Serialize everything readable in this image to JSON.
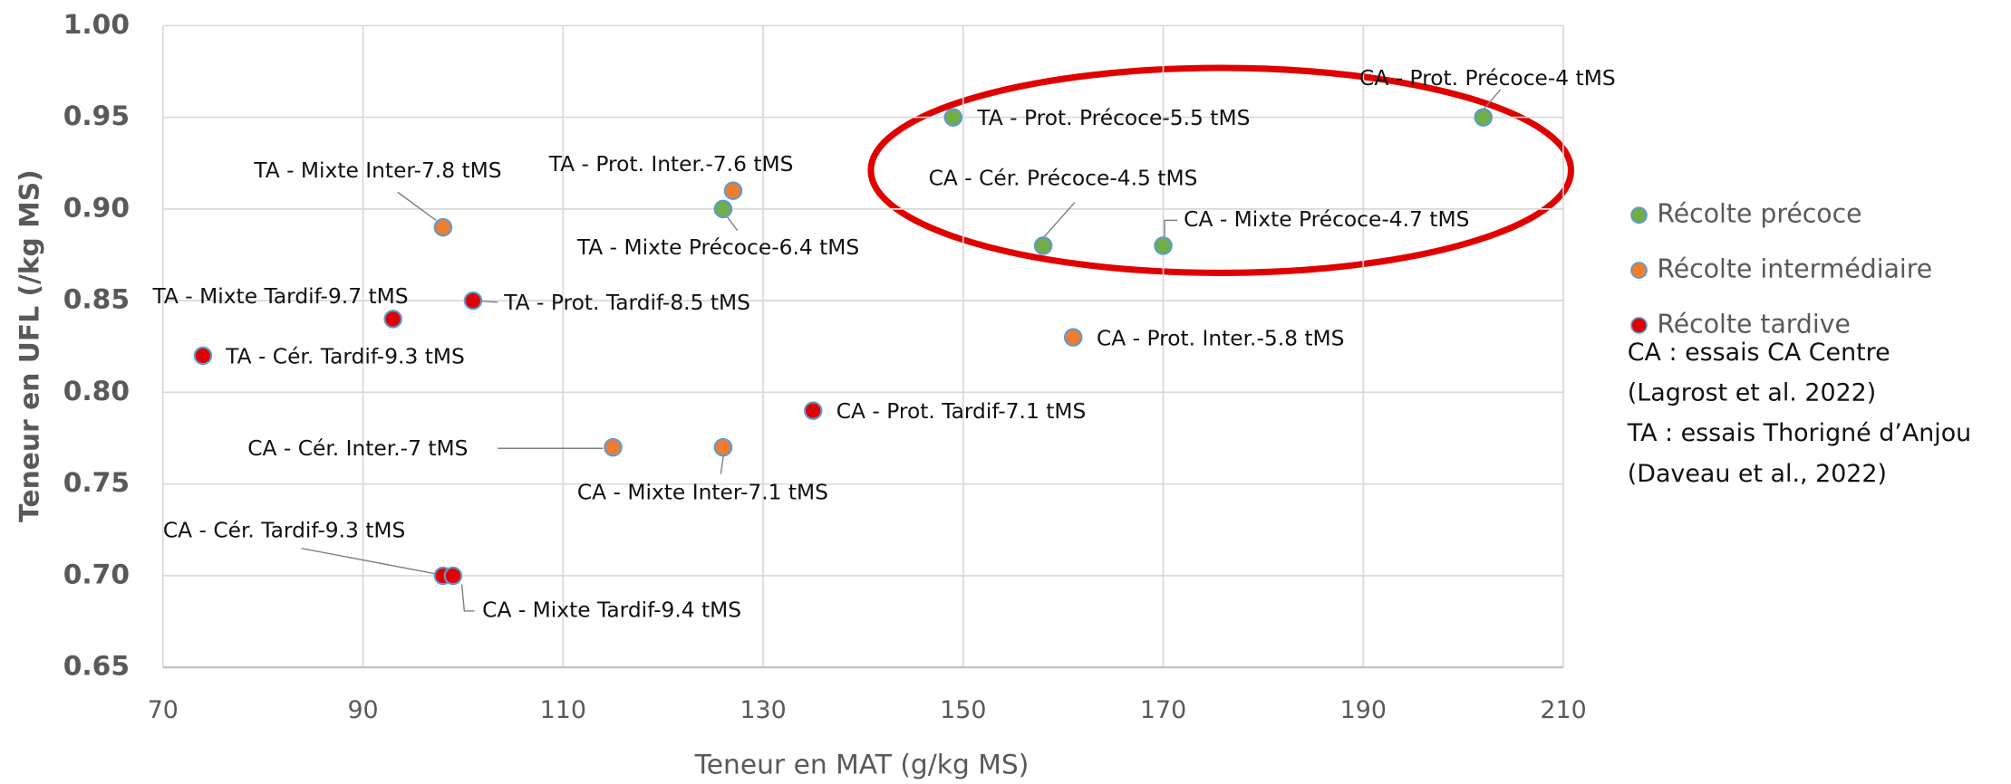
{
  "chart_data": {
    "type": "scatter",
    "xlabel": "Teneur en MAT (g/kg MS)",
    "ylabel": "Teneur en UFL (/kg MS)",
    "xlim": [
      70,
      210
    ],
    "xticks": [
      70,
      90,
      110,
      130,
      150,
      170,
      190,
      210
    ],
    "ylim": [
      0.65,
      1.0
    ],
    "yticks": [
      {
        "value": 0.65,
        "label": "0.65"
      },
      {
        "value": 0.7,
        "label": "0.70"
      },
      {
        "value": 0.75,
        "label": "0.75"
      },
      {
        "value": 0.8,
        "label": "0.80"
      },
      {
        "value": 0.85,
        "label": "0.85"
      },
      {
        "value": 0.9,
        "label": "0.90"
      },
      {
        "value": 0.95,
        "label": "0.95"
      },
      {
        "value": 1.0,
        "label": "1.00"
      }
    ],
    "grid": true,
    "series": [
      {
        "name": "Récolte précoce",
        "color": "#70ad47",
        "x": [
          149,
          202,
          158,
          170,
          126
        ],
        "values": [
          0.95,
          0.95,
          0.88,
          0.88,
          0.9
        ],
        "labels": [
          "TA - Prot. Précoce-5.5 tMS",
          "CA - Prot. Précoce-4 tMS",
          "CA - Cér. Précoce-4.5 tMS",
          "CA - Mixte Précoce-4.7 tMS",
          "TA - Mixte Précoce-6.4 tMS"
        ]
      },
      {
        "name": "Récolte intermédiaire",
        "color": "#ed7d31",
        "x": [
          98,
          127,
          161,
          115,
          126
        ],
        "values": [
          0.89,
          0.91,
          0.83,
          0.77,
          0.77
        ],
        "labels": [
          "TA - Mixte Inter-7.8 tMS",
          "TA - Prot. Inter.-7.6 tMS",
          "CA - Prot. Inter.-5.8 tMS",
          "CA - Cér. Inter.-7 tMS",
          "CA - Mixte Inter-7.1 tMS"
        ]
      },
      {
        "name": "Récolte tardive",
        "color": "#e00000",
        "x": [
          93,
          101,
          74,
          135,
          98,
          99
        ],
        "values": [
          0.84,
          0.85,
          0.82,
          0.79,
          0.7,
          0.7
        ],
        "labels": [
          "TA - Mixte Tardif-9.7 tMS",
          "TA - Prot. Tardif-8.5 tMS",
          "TA - Cér. Tardif-9.3 tMS",
          "CA - Prot. Tardif-7.1 tMS",
          "CA - Cér. Tardif-9.3 tMS",
          "CA - Mixte Tardif-9.4 tMS"
        ]
      }
    ],
    "notes": [
      "CA : essais CA Centre",
      "(Lagrost et al. 2022)",
      "TA : essais Thorigné d’Anjou",
      "(Daveau et al., 2022)"
    ]
  }
}
